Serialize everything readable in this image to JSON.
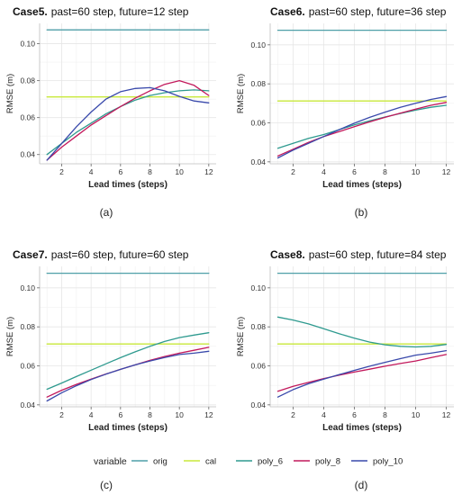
{
  "colors": {
    "orig": "#4f9fa8",
    "cal": "#c8e83a",
    "poly_6": "#2e9a8f",
    "poly_8": "#c2185b",
    "poly_10": "#3949ab",
    "panel_bg": "#ffffff",
    "grid": "#e6e6e6"
  },
  "legend": {
    "title": "variable",
    "items": [
      "orig",
      "cal",
      "poly_6",
      "poly_8",
      "poly_10"
    ]
  },
  "captions": [
    "(a)",
    "(b)",
    "(c)",
    "(d)"
  ],
  "chart_data": [
    {
      "type": "line",
      "title_bold": "Case5.",
      "title_rest": "past=60 step, future=12 step",
      "xlabel": "Lead times (steps)",
      "ylabel": "RMSE (m)",
      "xlim": [
        0.5,
        12.5
      ],
      "ylim": [
        0.035,
        0.111
      ],
      "xticks": [
        2,
        4,
        6,
        8,
        10,
        12
      ],
      "yticks": [
        0.04,
        0.06,
        0.08,
        0.1
      ],
      "ytick_labels": [
        "0.04",
        "0.06",
        "0.08",
        "0.10"
      ],
      "x": [
        1,
        2,
        3,
        4,
        5,
        6,
        7,
        8,
        9,
        10,
        11,
        12
      ],
      "series": [
        {
          "name": "orig",
          "values": [
            0.1075,
            0.1075,
            0.1075,
            0.1075,
            0.1075,
            0.1075,
            0.1075,
            0.1075,
            0.1075,
            0.1075,
            0.1075,
            0.1075
          ]
        },
        {
          "name": "cal",
          "values": [
            0.0712,
            0.0712,
            0.0712,
            0.0712,
            0.0712,
            0.0712,
            0.0712,
            0.0712,
            0.0712,
            0.0712,
            0.0712,
            0.0712
          ]
        },
        {
          "name": "poly_6",
          "values": [
            0.04,
            0.046,
            0.052,
            0.057,
            0.062,
            0.066,
            0.0695,
            0.072,
            0.0735,
            0.0745,
            0.075,
            0.0745
          ]
        },
        {
          "name": "poly_8",
          "values": [
            0.037,
            0.044,
            0.05,
            0.056,
            0.061,
            0.066,
            0.0705,
            0.0745,
            0.078,
            0.08,
            0.0775,
            0.072
          ]
        },
        {
          "name": "poly_10",
          "values": [
            0.037,
            0.046,
            0.055,
            0.063,
            0.07,
            0.074,
            0.0758,
            0.0762,
            0.0745,
            0.0715,
            0.069,
            0.068
          ]
        }
      ]
    },
    {
      "type": "line",
      "title_bold": "Case6.",
      "title_rest": "past=60 step, future=36 step",
      "xlabel": "Lead times (steps)",
      "ylabel": "RMSE (m)",
      "xlim": [
        0.5,
        12.5
      ],
      "ylim": [
        0.039,
        0.111
      ],
      "xticks": [
        2,
        4,
        6,
        8,
        10,
        12
      ],
      "yticks": [
        0.04,
        0.06,
        0.08,
        0.1
      ],
      "ytick_labels": [
        "0.04",
        "0.06",
        "0.08",
        "0.10"
      ],
      "x": [
        1,
        2,
        3,
        4,
        5,
        6,
        7,
        8,
        9,
        10,
        11,
        12
      ],
      "series": [
        {
          "name": "orig",
          "values": [
            0.1075,
            0.1075,
            0.1075,
            0.1075,
            0.1075,
            0.1075,
            0.1075,
            0.1075,
            0.1075,
            0.1075,
            0.1075,
            0.1075
          ]
        },
        {
          "name": "cal",
          "values": [
            0.0712,
            0.0712,
            0.0712,
            0.0712,
            0.0712,
            0.0712,
            0.0712,
            0.0712,
            0.0712,
            0.0712,
            0.0712,
            0.0712
          ]
        },
        {
          "name": "poly_6",
          "values": [
            0.047,
            0.0495,
            0.052,
            0.054,
            0.0565,
            0.059,
            0.061,
            0.063,
            0.0648,
            0.0665,
            0.068,
            0.069
          ]
        },
        {
          "name": "poly_8",
          "values": [
            0.043,
            0.0465,
            0.05,
            0.053,
            0.0555,
            0.058,
            0.0605,
            0.0628,
            0.065,
            0.067,
            0.069,
            0.0705
          ]
        },
        {
          "name": "poly_10",
          "values": [
            0.042,
            0.046,
            0.0495,
            0.053,
            0.0565,
            0.0598,
            0.0628,
            0.0655,
            0.068,
            0.07,
            0.072,
            0.0735
          ]
        }
      ]
    },
    {
      "type": "line",
      "title_bold": "Case7.",
      "title_rest": "past=60 step, future=60 step",
      "xlabel": "Lead times (steps)",
      "ylabel": "RMSE (m)",
      "xlim": [
        0.5,
        12.5
      ],
      "ylim": [
        0.039,
        0.111
      ],
      "xticks": [
        2,
        4,
        6,
        8,
        10,
        12
      ],
      "yticks": [
        0.04,
        0.06,
        0.08,
        0.1
      ],
      "ytick_labels": [
        "0.04",
        "0.06",
        "0.08",
        "0.10"
      ],
      "x": [
        1,
        2,
        3,
        4,
        5,
        6,
        7,
        8,
        9,
        10,
        11,
        12
      ],
      "series": [
        {
          "name": "orig",
          "values": [
            0.1075,
            0.1075,
            0.1075,
            0.1075,
            0.1075,
            0.1075,
            0.1075,
            0.1075,
            0.1075,
            0.1075,
            0.1075,
            0.1075
          ]
        },
        {
          "name": "cal",
          "values": [
            0.0712,
            0.0712,
            0.0712,
            0.0712,
            0.0712,
            0.0712,
            0.0712,
            0.0712,
            0.0712,
            0.0712,
            0.0712,
            0.0712
          ]
        },
        {
          "name": "poly_6",
          "values": [
            0.048,
            0.0512,
            0.0545,
            0.0578,
            0.061,
            0.0642,
            0.0672,
            0.07,
            0.0725,
            0.0745,
            0.0758,
            0.077
          ]
        },
        {
          "name": "poly_8",
          "values": [
            0.044,
            0.0475,
            0.0505,
            0.0532,
            0.0558,
            0.0582,
            0.0605,
            0.0628,
            0.0648,
            0.0665,
            0.068,
            0.0695
          ]
        },
        {
          "name": "poly_10",
          "values": [
            0.042,
            0.0462,
            0.0498,
            0.053,
            0.0557,
            0.0582,
            0.0605,
            0.0625,
            0.0643,
            0.0658,
            0.0665,
            0.0675
          ]
        }
      ]
    },
    {
      "type": "line",
      "title_bold": "Case8.",
      "title_rest": "past=60 step, future=84 step",
      "xlabel": "Lead times (steps)",
      "ylabel": "RMSE (m)",
      "xlim": [
        0.5,
        12.5
      ],
      "ylim": [
        0.039,
        0.111
      ],
      "xticks": [
        2,
        4,
        6,
        8,
        10,
        12
      ],
      "yticks": [
        0.04,
        0.06,
        0.08,
        0.1
      ],
      "ytick_labels": [
        "0.04",
        "0.06",
        "0.08",
        "0.10"
      ],
      "x": [
        1,
        2,
        3,
        4,
        5,
        6,
        7,
        8,
        9,
        10,
        11,
        12
      ],
      "series": [
        {
          "name": "orig",
          "values": [
            0.1075,
            0.1075,
            0.1075,
            0.1075,
            0.1075,
            0.1075,
            0.1075,
            0.1075,
            0.1075,
            0.1075,
            0.1075,
            0.1075
          ]
        },
        {
          "name": "cal",
          "values": [
            0.0712,
            0.0712,
            0.0712,
            0.0712,
            0.0712,
            0.0712,
            0.0712,
            0.0712,
            0.0712,
            0.0712,
            0.0712,
            0.0712
          ]
        },
        {
          "name": "poly_6",
          "values": [
            0.085,
            0.0835,
            0.0815,
            0.079,
            0.0765,
            0.0742,
            0.0722,
            0.0708,
            0.07,
            0.0697,
            0.07,
            0.071
          ]
        },
        {
          "name": "poly_8",
          "values": [
            0.047,
            0.0495,
            0.0515,
            0.0535,
            0.0552,
            0.0568,
            0.0583,
            0.0598,
            0.0612,
            0.0625,
            0.0642,
            0.0658
          ]
        },
        {
          "name": "poly_10",
          "values": [
            0.044,
            0.0478,
            0.0508,
            0.0532,
            0.0555,
            0.0577,
            0.0598,
            0.0618,
            0.0637,
            0.0655,
            0.0665,
            0.0678
          ]
        }
      ]
    }
  ]
}
